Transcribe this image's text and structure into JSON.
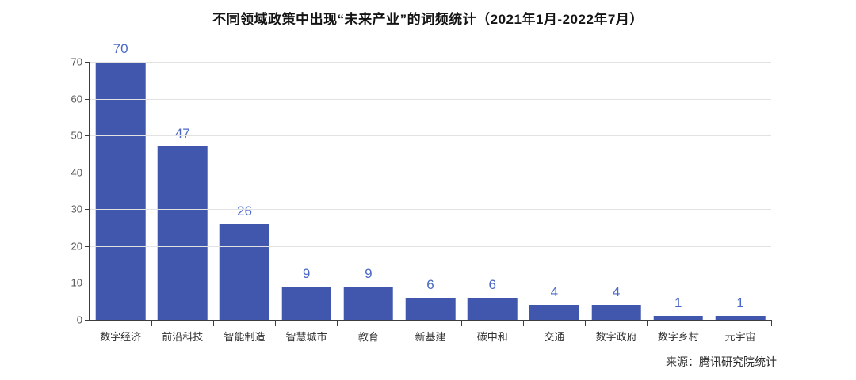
{
  "title": "不同领域政策中出现“未来产业”的词频统计（2021年1月-2022年7月）",
  "source": "来源：腾讯研究院统计",
  "colors": {
    "bar": "#4156ad",
    "value_label": "#4a68c6",
    "gridline": "#e2e2e2",
    "axis": "#3d3d3d",
    "y_tick_label": "#555555",
    "x_label": "#333333"
  },
  "chart_data": {
    "type": "bar",
    "title": "不同领域政策中出现“未来产业”的词频统计（2021年1月-2022年7月）",
    "categories": [
      "数字经济",
      "前沿科技",
      "智能制造",
      "智慧城市",
      "教育",
      "新基建",
      "碳中和",
      "交通",
      "数字政府",
      "数字乡村",
      "元宇宙"
    ],
    "values": [
      70,
      47,
      26,
      9,
      9,
      6,
      6,
      4,
      4,
      1,
      1
    ],
    "xlabel": "",
    "ylabel": "",
    "ylim": [
      0,
      70
    ],
    "ytick_step": 10,
    "yticks": [
      0,
      10,
      20,
      30,
      40,
      50,
      60,
      70
    ],
    "grid": true,
    "legend": false,
    "value_labels_shown": true,
    "source": "来源：腾讯研究院统计"
  }
}
